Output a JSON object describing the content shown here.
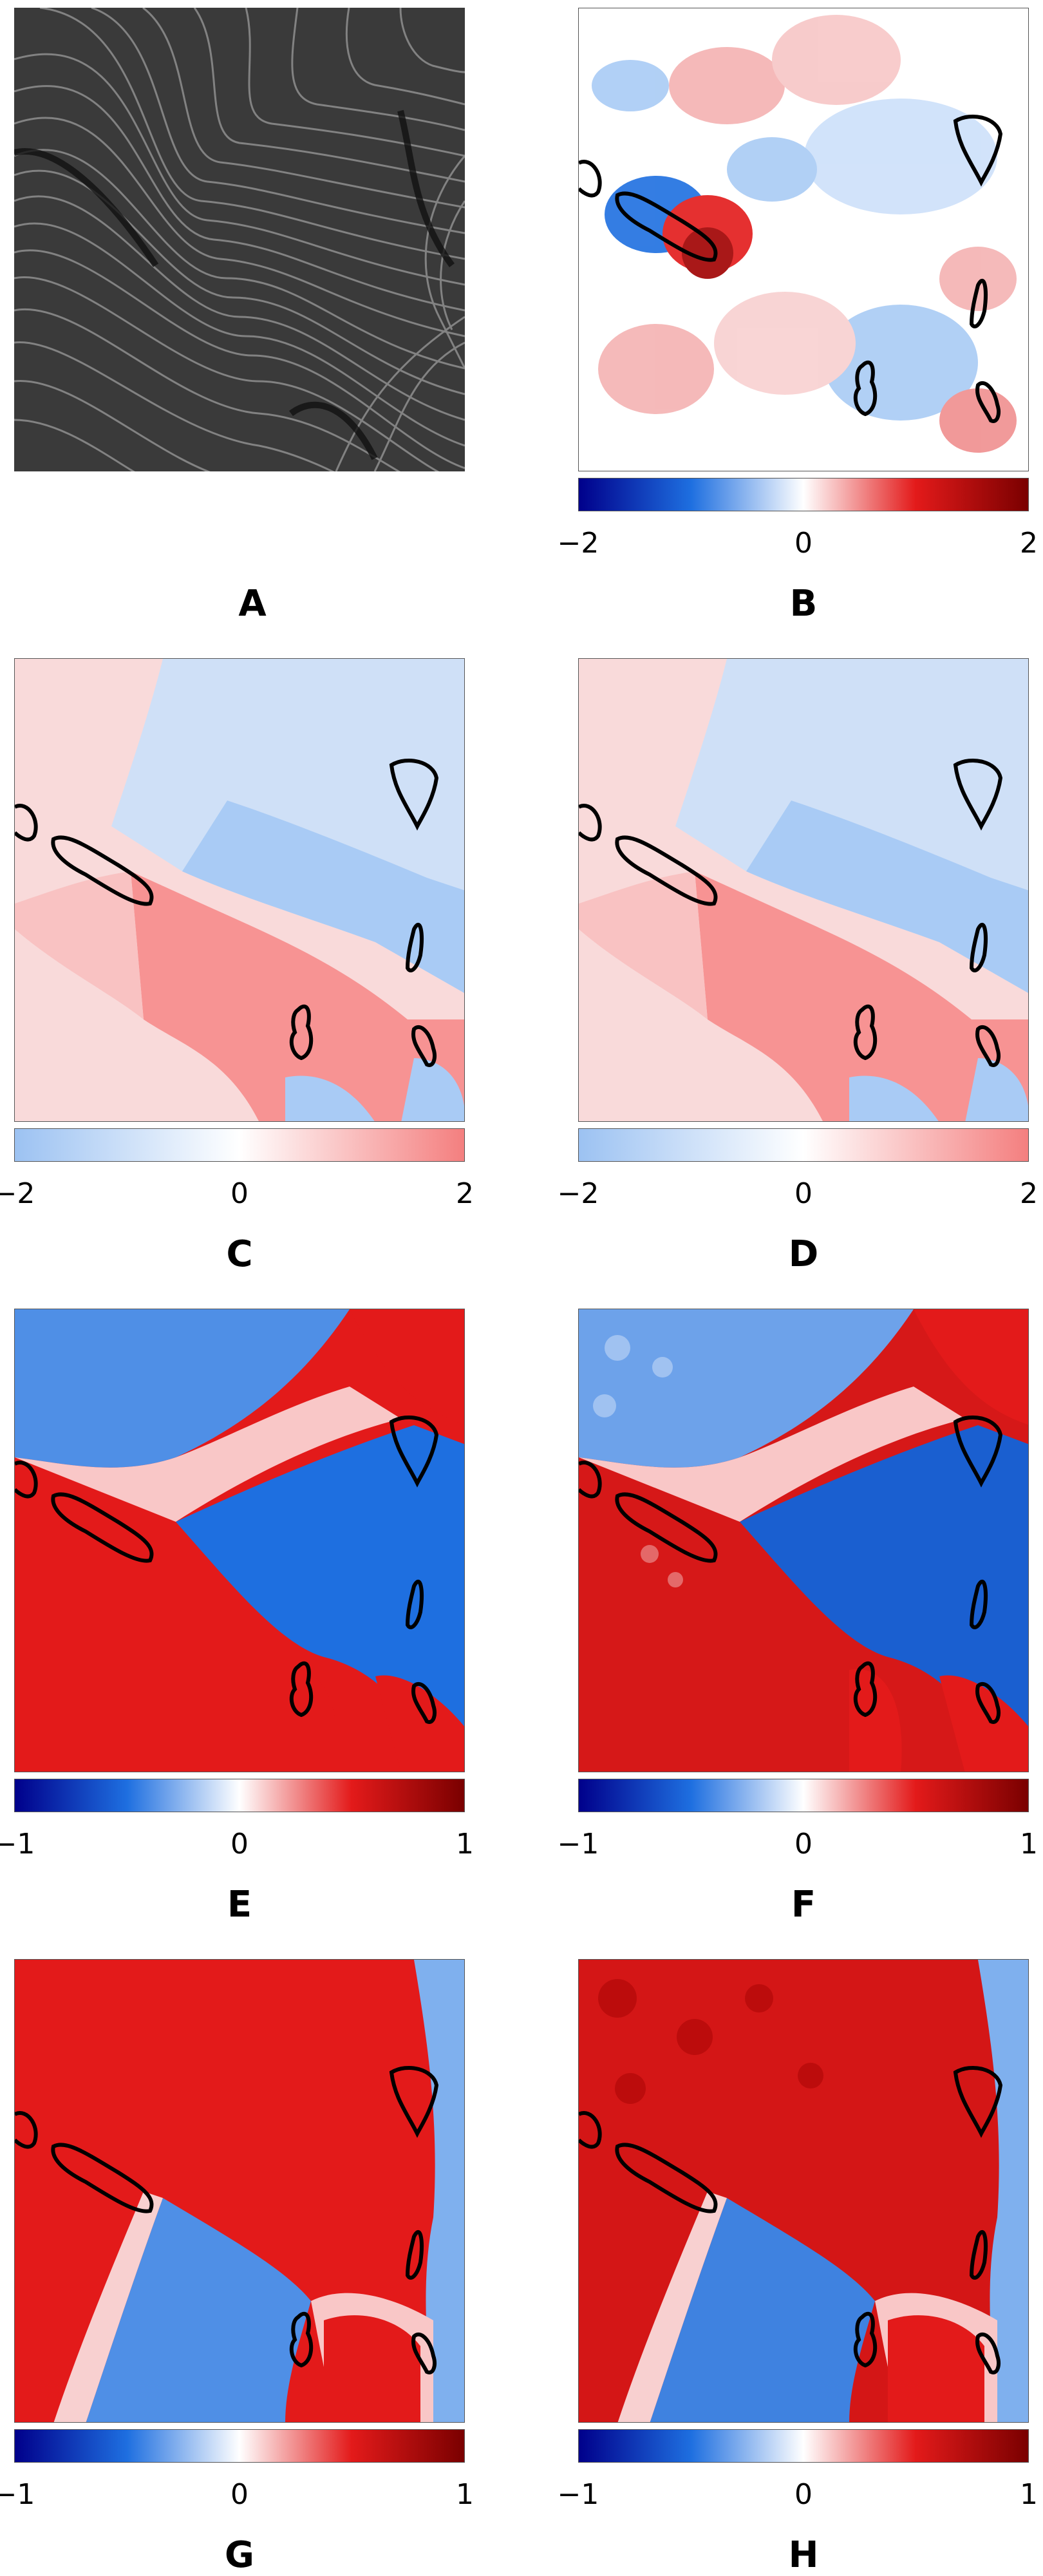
{
  "panels": {
    "A": {
      "label": "A"
    },
    "B": {
      "label": "B",
      "colorbar": {
        "min_label": "−2",
        "mid_label": "0",
        "max_label": "2"
      }
    },
    "C": {
      "label": "C",
      "colorbar": {
        "min_label": "−2",
        "mid_label": "0",
        "max_label": "2"
      }
    },
    "D": {
      "label": "D",
      "colorbar": {
        "min_label": "−2",
        "mid_label": "0",
        "max_label": "2"
      }
    },
    "E": {
      "label": "E",
      "colorbar": {
        "min_label": "−1",
        "mid_label": "0",
        "max_label": "1"
      }
    },
    "F": {
      "label": "F",
      "colorbar": {
        "min_label": "−1",
        "mid_label": "0",
        "max_label": "1"
      }
    },
    "G": {
      "label": "G",
      "colorbar": {
        "min_label": "−1",
        "mid_label": "0",
        "max_label": "1"
      }
    },
    "H": {
      "label": "H",
      "colorbar": {
        "min_label": "−1",
        "mid_label": "0",
        "max_label": "1"
      }
    }
  },
  "colors": {
    "deep_blue": "#00008b",
    "blue": "#1e6fe0",
    "light_blue": "#a9cbf5",
    "white": "#ffffff",
    "light_red": "#f4a0a0",
    "red": "#e31a1a",
    "dark_red": "#7a0000",
    "contour": "#000000",
    "frame": "#555555"
  },
  "icons": {
    "panel_a": "grayscale-fiber-micrograph",
    "defect_contours": "defect-contour-outlines"
  }
}
